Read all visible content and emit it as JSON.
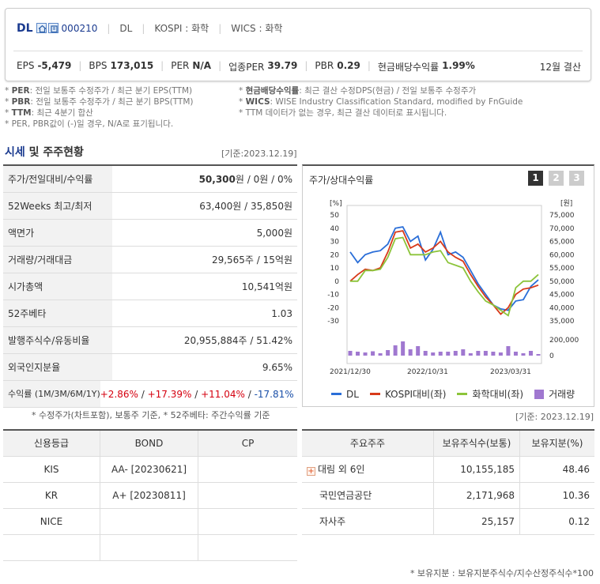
{
  "header": {
    "company": "DL",
    "code": "000210",
    "tags": [
      "DL",
      "KOSPI : 화학",
      "WICS : 화학"
    ],
    "metrics": [
      {
        "label": "EPS",
        "value": "-5,479"
      },
      {
        "label": "BPS",
        "value": "173,015"
      },
      {
        "label": "PER",
        "value": "N/A"
      },
      {
        "label": "업종PER",
        "value": "39.79"
      },
      {
        "label": "PBR",
        "value": "0.29"
      },
      {
        "label": "현금배당수익률",
        "value": "1.99%"
      }
    ],
    "settlement": "12월 결산"
  },
  "notes": {
    "left": [
      {
        "key": "PER",
        "text": ": 전일 보통주 수정주가 / 최근 분기 EPS(TTM)"
      },
      {
        "key": "PBR",
        "text": ": 전일 보통주 수정주가 / 최근 분기 BPS(TTM)"
      },
      {
        "key": "TTM",
        "text": ": 최근 4분기 합산"
      },
      {
        "key": "",
        "text": "PER, PBR값이 (-)일 경우, N/A로 표기됩니다."
      }
    ],
    "right": [
      {
        "key": "현금배당수익률",
        "text": ": 최근 결산 수정DPS(현금) / 전일 보통주 수정주가"
      },
      {
        "key": "WICS",
        "text": ": WISE Industry Classification Standard, modified by FnGuide"
      },
      {
        "key": "",
        "text": "TTM 데이터가 없는 경우, 최근 결산 데이터로 표시됩니다."
      }
    ]
  },
  "section": {
    "title_blue": "시세",
    "title_rest": " 및 주주현황",
    "base_date": "[기준:2023.12.19]"
  },
  "quote_table": [
    {
      "label": "주가/전일대비/수익률",
      "value": "50,300원 / 0원 / 0%"
    },
    {
      "label": "52Weeks 최고/최저",
      "value": "63,400원 / 35,850원"
    },
    {
      "label": "액면가",
      "value": "5,000원"
    },
    {
      "label": "거래량/거래대금",
      "value": "29,565주 / 15억원"
    },
    {
      "label": "시가총액",
      "value": "10,541억원"
    },
    {
      "label": "52주베타",
      "value": "1.03"
    },
    {
      "label": "발행주식수/유동비율",
      "value": "20,955,884주 / 51.42%"
    },
    {
      "label": "외국인지분율",
      "value": "9.65%"
    }
  ],
  "returns": {
    "label": "수익률 (1M/3M/6M/1Y)",
    "values": [
      "+2.86%",
      "+17.39%",
      "+11.04%",
      "-17.81%"
    ],
    "sep": "/"
  },
  "left_note": "* 수정주가(차트포함), 보통주 기준, * 52주베타: 주간수익률 기준",
  "chart_panel": {
    "title": "주가/상대수익률",
    "tabs": [
      "1",
      "2",
      "3"
    ],
    "active_tab": 0
  },
  "chart_data": {
    "type": "line",
    "left_unit": "[%]",
    "right_unit": "[원]",
    "left_ticks": [
      50,
      40,
      30,
      20,
      10,
      0,
      -10,
      -20,
      -30
    ],
    "right_ticks": [
      "75,000",
      "70,000",
      "65,000",
      "60,000",
      "55,000",
      "50,000",
      "45,000",
      "40,000",
      "35,000"
    ],
    "volume_ticks": [
      "200,000",
      "0"
    ],
    "x_ticks": [
      "2021/12/30",
      "2022/10/31",
      "2023/03/31"
    ],
    "left_range": [
      -30,
      50
    ],
    "volume_max": 200000,
    "series": [
      {
        "name": "DL",
        "color": "#2a6ed8",
        "values": [
          22,
          14,
          20,
          22,
          23,
          28,
          40,
          41,
          30,
          34,
          16,
          24,
          37,
          20,
          22,
          18,
          8,
          -2,
          -10,
          -18,
          -21,
          -22,
          -15,
          -14,
          -4,
          1
        ]
      },
      {
        "name": "KOSPI대비(좌)",
        "color": "#d83a1a",
        "values": [
          0,
          5,
          9,
          8,
          10,
          22,
          37,
          38,
          25,
          28,
          22,
          25,
          30,
          22,
          18,
          15,
          5,
          -4,
          -12,
          -18,
          -25,
          -20,
          -10,
          -6,
          -5,
          -3
        ]
      },
      {
        "name": "화학대비(좌)",
        "color": "#8cc43a",
        "values": [
          0,
          0,
          8,
          8,
          9,
          18,
          32,
          33,
          20,
          20,
          20,
          22,
          23,
          14,
          12,
          10,
          0,
          -8,
          -15,
          -18,
          -22,
          -26,
          -5,
          0,
          0,
          5
        ]
      }
    ],
    "volume": {
      "name": "거래량",
      "color": "#a078d0",
      "values": [
        60000,
        50000,
        40000,
        55000,
        30000,
        70000,
        130000,
        180000,
        80000,
        120000,
        60000,
        40000,
        50000,
        50000,
        60000,
        80000,
        30000,
        60000,
        60000,
        50000,
        40000,
        120000,
        50000,
        30000,
        60000,
        20000
      ]
    }
  },
  "right_date": "[기준: 2023.12.19]",
  "credit_table": {
    "headers": [
      "신용등급",
      "BOND",
      "CP"
    ],
    "rows": [
      [
        "KIS",
        "AA-  [20230621]",
        ""
      ],
      [
        "KR",
        "A+  [20230811]",
        ""
      ],
      [
        "NICE",
        "",
        ""
      ],
      [
        "",
        "",
        ""
      ]
    ]
  },
  "shareholder_table": {
    "headers": [
      "주요주주",
      "보유주식수(보통)",
      "보유지분(%)"
    ],
    "rows": [
      {
        "name": "대림 외 6인",
        "shares": "10,155,185",
        "pct": "48.46",
        "expand": true
      },
      {
        "name": "국민연금공단",
        "shares": "2,171,968",
        "pct": "10.36",
        "expand": false
      },
      {
        "name": "자사주",
        "shares": "25,157",
        "pct": "0.12",
        "expand": false
      }
    ],
    "note": "* 보유지분 : 보유지분주식수/지수산정주식수*100"
  }
}
